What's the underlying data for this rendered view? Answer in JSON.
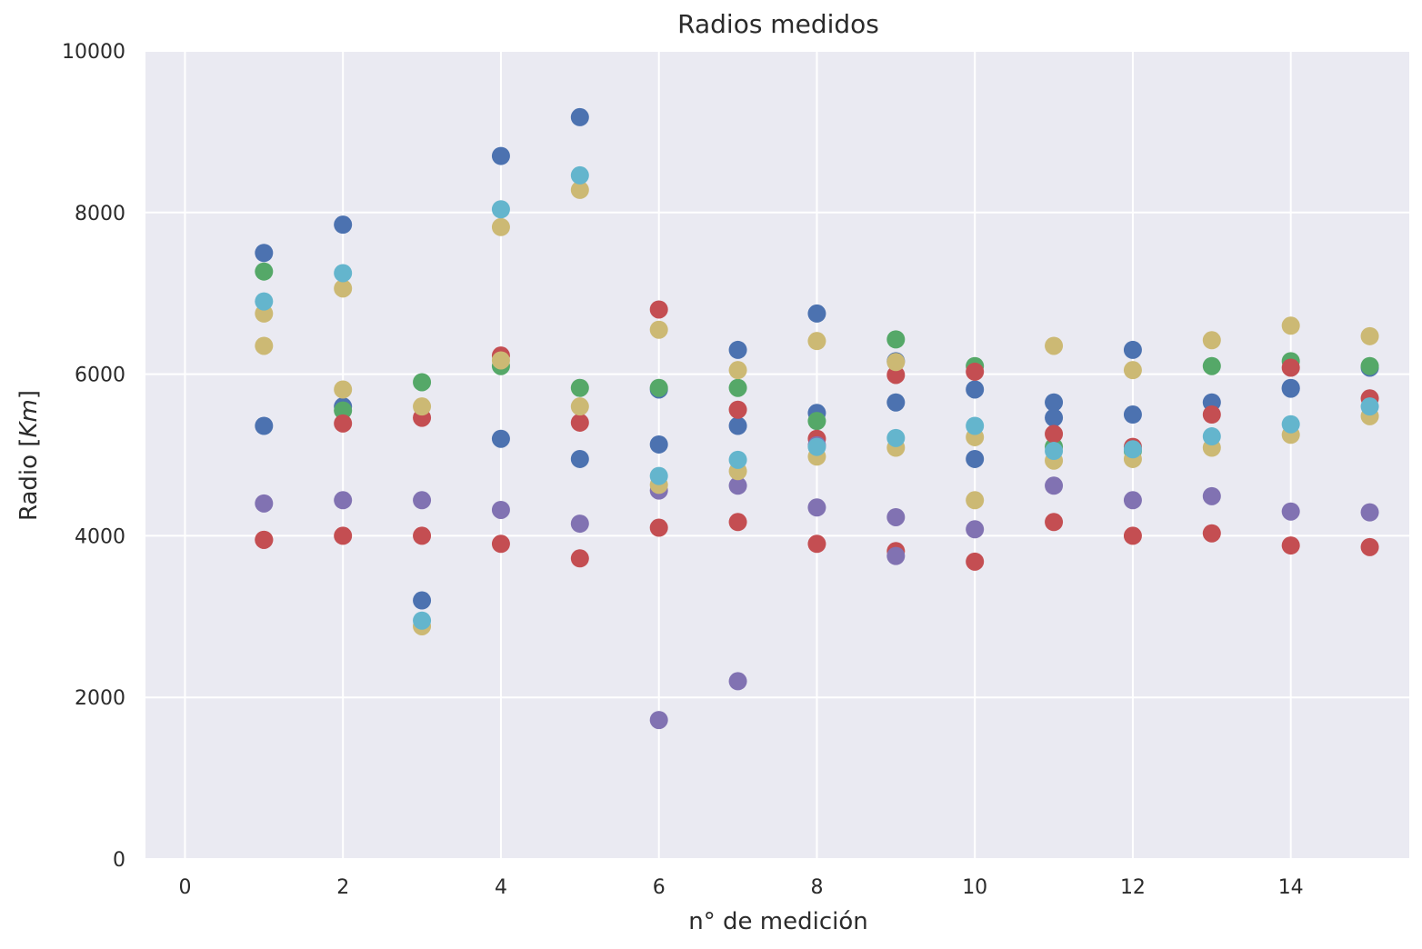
{
  "chart_data": {
    "type": "scatter",
    "title": "Radios medidos",
    "xlabel": "n° de medición",
    "ylabel_text": "Radio  [",
    "ylabel_unit": "Km",
    "ylabel_close": "]",
    "xlim": [
      -0.5,
      15.5
    ],
    "ylim": [
      0,
      10000
    ],
    "xticks": [
      0,
      2,
      4,
      6,
      8,
      10,
      12,
      14
    ],
    "yticks": [
      0,
      2000,
      4000,
      6000,
      8000,
      10000
    ],
    "grid": true,
    "background": "#EAEAF2",
    "gridColor": "#ffffff",
    "series": [
      {
        "color": "#4C72B0",
        "x": [
          1,
          2,
          3,
          4,
          5,
          6,
          7,
          8,
          9,
          10,
          11,
          12,
          13,
          14,
          15
        ],
        "y": [
          7500,
          7850,
          3200,
          8700,
          9180,
          5810,
          6300,
          6750,
          6160,
          5810,
          5650,
          6300,
          5650,
          5830,
          6080
        ]
      },
      {
        "color": "#4C72B0",
        "x": [
          1,
          2,
          4,
          5,
          6,
          7,
          8,
          9,
          10,
          11,
          12,
          14
        ],
        "y": [
          5360,
          5600,
          5200,
          4950,
          5130,
          5360,
          5520,
          5650,
          4950,
          5460,
          5500,
          5820
        ]
      },
      {
        "color": "#55A868",
        "x": [
          1,
          2,
          3,
          4,
          5,
          6,
          7,
          8,
          9,
          10,
          11,
          12,
          13,
          14,
          15
        ],
        "y": [
          7270,
          5550,
          5900,
          6100,
          5830,
          5830,
          5830,
          5420,
          6430,
          6100,
          5100,
          5050,
          6100,
          6160,
          6100
        ]
      },
      {
        "color": "#C44E52",
        "x": [
          1,
          2,
          3,
          4,
          5,
          6,
          7,
          8,
          9,
          10,
          11,
          12,
          13,
          14,
          15
        ],
        "y": [
          3950,
          4000,
          5460,
          6230,
          5400,
          6800,
          5560,
          5200,
          5990,
          6030,
          5260,
          5100,
          5500,
          6080,
          5700
        ]
      },
      {
        "color": "#C44E52",
        "x": [
          1,
          2,
          3,
          4,
          5,
          6,
          7,
          8,
          9,
          10,
          11,
          12,
          13,
          14,
          15
        ],
        "y": [
          3950,
          5390,
          4000,
          3900,
          3720,
          4100,
          4170,
          3900,
          3810,
          3680,
          4170,
          4000,
          4030,
          3880,
          3860
        ]
      },
      {
        "color": "#8172B2",
        "x": [
          1,
          2,
          3,
          4,
          5,
          6,
          7,
          8,
          9,
          10,
          11,
          12,
          13,
          14,
          15
        ],
        "y": [
          4400,
          4440,
          4440,
          4320,
          4150,
          1720,
          2200,
          4350,
          4230,
          4080,
          4620,
          4440,
          4490,
          4300,
          4290
        ]
      },
      {
        "color": "#8172B2",
        "x": [
          6,
          7,
          8,
          9
        ],
        "y": [
          4560,
          4620,
          5120,
          3750
        ]
      },
      {
        "color": "#CCB974",
        "x": [
          1,
          2,
          3,
          4,
          5,
          6,
          7,
          8,
          9,
          10,
          11,
          12,
          13,
          14,
          15
        ],
        "y": [
          6750,
          7060,
          2880,
          7820,
          8280,
          6550,
          6050,
          6410,
          6150,
          4440,
          6350,
          6050,
          6420,
          6600,
          6470
        ]
      },
      {
        "color": "#CCB974",
        "x": [
          1,
          2,
          3,
          4,
          5,
          6,
          7,
          8,
          9,
          10,
          11,
          12,
          13,
          14,
          15
        ],
        "y": [
          6350,
          5810,
          5600,
          6170,
          5600,
          4630,
          4800,
          4980,
          5090,
          5220,
          4930,
          4950,
          5090,
          5250,
          5480
        ]
      },
      {
        "color": "#64B5CD",
        "x": [
          1,
          2,
          3,
          4,
          5,
          6,
          7,
          8,
          9,
          10,
          11,
          12,
          13,
          14,
          15
        ],
        "y": [
          6900,
          7250,
          2950,
          8040,
          8460,
          4740,
          4940,
          5100,
          5210,
          5360,
          5050,
          5070,
          5230,
          5380,
          5600
        ]
      }
    ]
  }
}
